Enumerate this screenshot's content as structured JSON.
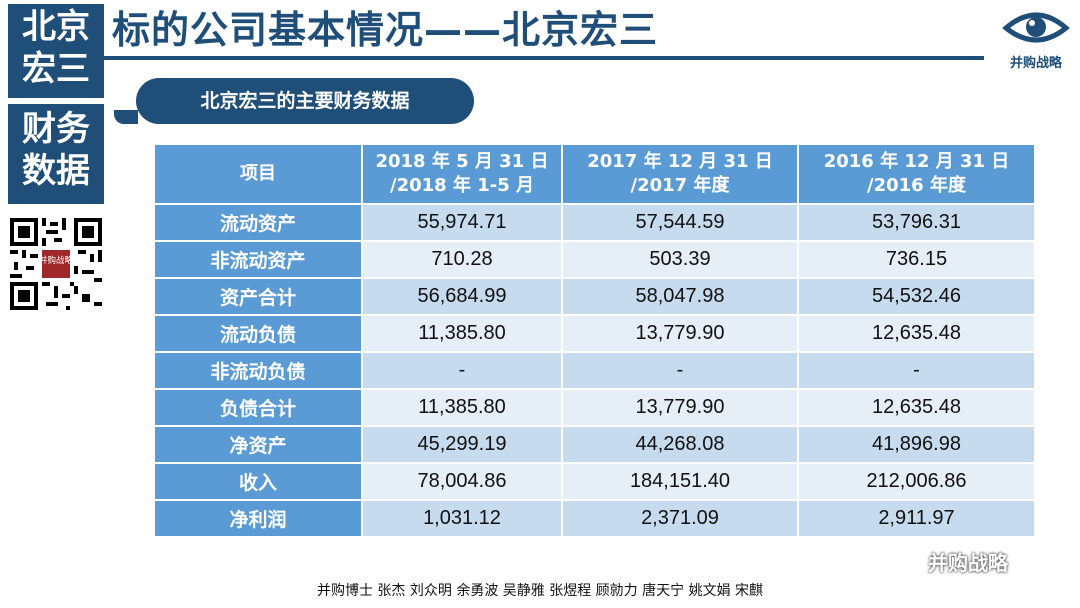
{
  "sidebar": {
    "block1": [
      "北京",
      "宏三"
    ],
    "block2": [
      "财务",
      "数据"
    ],
    "qr_stamp": "并购战略"
  },
  "header": {
    "title": "标的公司基本情况——北京宏三",
    "logo_text": "并购战略"
  },
  "section": {
    "label": "北京宏三的主要财务数据"
  },
  "table": {
    "headers": [
      "项目",
      "2018 年 5 月 31 日 /2018 年 1-5 月",
      "2017 年 12 月 31 日 /2017 年度",
      "2016 年 12 月 31 日 /2016 年度"
    ],
    "header_lines": [
      [
        "项目"
      ],
      [
        "2018 年 5 月 31 日",
        "/2018 年 1-5 月"
      ],
      [
        "2017 年 12 月 31 日",
        "/2017 年度"
      ],
      [
        "2016 年 12 月 31 日",
        "/2016 年度"
      ]
    ],
    "rows": [
      [
        "流动资产",
        "55,974.71",
        "57,544.59",
        "53,796.31"
      ],
      [
        "非流动资产",
        "710.28",
        "503.39",
        "736.15"
      ],
      [
        "资产合计",
        "56,684.99",
        "58,047.98",
        "54,532.46"
      ],
      [
        "流动负债",
        "11,385.80",
        "13,779.90",
        "12,635.48"
      ],
      [
        "非流动负债",
        "-",
        "-",
        "-"
      ],
      [
        "负债合计",
        "11,385.80",
        "13,779.90",
        "12,635.48"
      ],
      [
        "净资产",
        "45,299.19",
        "44,268.08",
        "41,896.98"
      ],
      [
        "收入",
        "78,004.86",
        "184,151.40",
        "212,006.86"
      ],
      [
        "净利润",
        "1,031.12",
        "2,371.09",
        "2,911.97"
      ]
    ]
  },
  "footer": {
    "authors": "并购博士 张杰 刘众明 余勇波 吴静雅 张煜程  顾勍力 唐天宁 姚文娟 宋麒"
  },
  "watermark": {
    "text": "并购战略"
  },
  "colors": {
    "primary": "#1f4e79",
    "header_cell": "#5b9bd5",
    "cell": "#c7dbef",
    "cell_alt": "#e6eef7"
  }
}
